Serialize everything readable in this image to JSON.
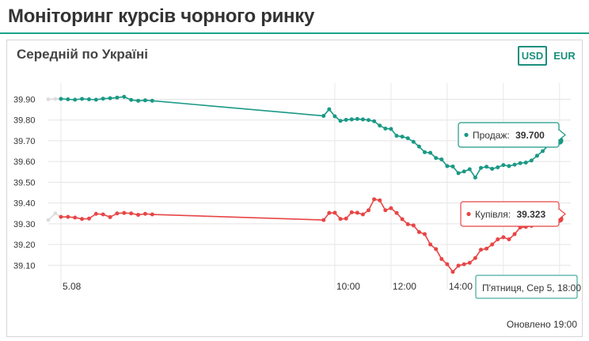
{
  "page": {
    "title": "Моніторинг курсів чорного ринку"
  },
  "card": {
    "title": "Середній по Україні",
    "currencies": [
      "USD",
      "EUR"
    ],
    "active_currency": "USD",
    "updated": "Оновлено 19:00"
  },
  "tooltips": {
    "sell_label": "Продаж:",
    "sell_value": "39.700",
    "buy_label": "Купівля:",
    "buy_value": "39.323",
    "date": "П'ятниця, Сер 5, 18:00"
  },
  "colors": {
    "sell": "#1a9985",
    "buy": "#e84545",
    "accent": "#1aa48a"
  },
  "chart_data": {
    "type": "line",
    "ylim": [
      39.04,
      39.94
    ],
    "y_ticks": [
      "39.10",
      "39.20",
      "39.30",
      "39.40",
      "39.50",
      "39.60",
      "39.70",
      "39.80",
      "39.90"
    ],
    "y_tick_values": [
      39.1,
      39.2,
      39.3,
      39.4,
      39.5,
      39.6,
      39.7,
      39.8,
      39.9
    ],
    "x_unit": "hours since midnight 5.08",
    "xlim": [
      -0.2,
      18.4
    ],
    "x_ticks": [
      {
        "label": "5.08",
        "x": 0.25
      },
      {
        "label": "10:00",
        "x": 10
      },
      {
        "label": "12:00",
        "x": 12
      },
      {
        "label": "14:00",
        "x": 14
      }
    ],
    "x_grid": [
      0.25,
      10,
      12,
      14,
      16,
      18
    ],
    "series": [
      {
        "name": "Продаж",
        "key": "sell",
        "ghost": [
          [
            -0.2,
            39.9
          ],
          [
            0.05,
            39.902
          ]
        ],
        "points": [
          [
            0.25,
            39.902
          ],
          [
            0.5,
            39.9
          ],
          [
            0.75,
            39.898
          ],
          [
            1.0,
            39.902
          ],
          [
            1.25,
            39.9
          ],
          [
            1.5,
            39.898
          ],
          [
            1.75,
            39.903
          ],
          [
            2.0,
            39.905
          ],
          [
            2.25,
            39.908
          ],
          [
            2.5,
            39.912
          ],
          [
            2.75,
            39.897
          ],
          [
            3.0,
            39.893
          ],
          [
            3.25,
            39.895
          ],
          [
            3.5,
            39.893
          ],
          [
            9.6,
            39.82
          ],
          [
            9.8,
            39.852
          ],
          [
            10.0,
            39.818
          ],
          [
            10.2,
            39.796
          ],
          [
            10.4,
            39.801
          ],
          [
            10.6,
            39.803
          ],
          [
            10.8,
            39.805
          ],
          [
            11.0,
            39.803
          ],
          [
            11.2,
            39.8
          ],
          [
            11.4,
            39.794
          ],
          [
            11.6,
            39.773
          ],
          [
            11.8,
            39.759
          ],
          [
            12.0,
            39.757
          ],
          [
            12.2,
            39.724
          ],
          [
            12.4,
            39.72
          ],
          [
            12.6,
            39.712
          ],
          [
            12.8,
            39.695
          ],
          [
            13.0,
            39.672
          ],
          [
            13.2,
            39.645
          ],
          [
            13.4,
            39.642
          ],
          [
            13.6,
            39.617
          ],
          [
            13.8,
            39.61
          ],
          [
            14.0,
            39.578
          ],
          [
            14.2,
            39.576
          ],
          [
            14.4,
            39.544
          ],
          [
            14.6,
            39.552
          ],
          [
            14.8,
            39.563
          ],
          [
            15.0,
            39.523
          ],
          [
            15.2,
            39.569
          ],
          [
            15.4,
            39.575
          ],
          [
            15.6,
            39.565
          ],
          [
            15.8,
            39.572
          ],
          [
            16.0,
            39.583
          ],
          [
            16.2,
            39.578
          ],
          [
            16.4,
            39.585
          ],
          [
            16.6,
            39.592
          ],
          [
            16.8,
            39.595
          ],
          [
            17.0,
            39.605
          ],
          [
            17.2,
            39.628
          ],
          [
            17.4,
            39.65
          ],
          [
            17.6,
            39.678
          ],
          [
            17.8,
            39.695
          ],
          [
            18.0,
            39.7
          ]
        ]
      },
      {
        "name": "Купівля",
        "key": "buy",
        "ghost": [
          [
            -0.2,
            39.318
          ],
          [
            0.05,
            39.35
          ]
        ],
        "points": [
          [
            0.25,
            39.333
          ],
          [
            0.5,
            39.333
          ],
          [
            0.75,
            39.33
          ],
          [
            1.0,
            39.323
          ],
          [
            1.25,
            39.325
          ],
          [
            1.5,
            39.348
          ],
          [
            1.75,
            39.345
          ],
          [
            2.0,
            39.332
          ],
          [
            2.25,
            39.35
          ],
          [
            2.5,
            39.352
          ],
          [
            2.75,
            39.35
          ],
          [
            3.0,
            39.343
          ],
          [
            3.25,
            39.348
          ],
          [
            3.5,
            39.345
          ],
          [
            9.6,
            39.318
          ],
          [
            9.8,
            39.352
          ],
          [
            10.0,
            39.353
          ],
          [
            10.2,
            39.323
          ],
          [
            10.4,
            39.325
          ],
          [
            10.6,
            39.355
          ],
          [
            10.8,
            39.353
          ],
          [
            11.0,
            39.345
          ],
          [
            11.2,
            39.365
          ],
          [
            11.4,
            39.418
          ],
          [
            11.6,
            39.413
          ],
          [
            11.8,
            39.365
          ],
          [
            12.0,
            39.375
          ],
          [
            12.2,
            39.352
          ],
          [
            12.4,
            39.322
          ],
          [
            12.6,
            39.298
          ],
          [
            12.8,
            39.292
          ],
          [
            13.0,
            39.26
          ],
          [
            13.2,
            39.25
          ],
          [
            13.4,
            39.2
          ],
          [
            13.6,
            39.178
          ],
          [
            13.8,
            39.13
          ],
          [
            14.0,
            39.105
          ],
          [
            14.2,
            39.068
          ],
          [
            14.4,
            39.098
          ],
          [
            14.6,
            39.105
          ],
          [
            14.8,
            39.112
          ],
          [
            15.0,
            39.135
          ],
          [
            15.2,
            39.175
          ],
          [
            15.4,
            39.18
          ],
          [
            15.6,
            39.2
          ],
          [
            15.8,
            39.225
          ],
          [
            16.0,
            39.235
          ],
          [
            16.2,
            39.225
          ],
          [
            16.4,
            39.25
          ],
          [
            16.6,
            39.282
          ],
          [
            16.8,
            39.285
          ],
          [
            17.0,
            39.29
          ],
          [
            17.2,
            39.295
          ],
          [
            17.4,
            39.305
          ],
          [
            17.6,
            39.312
          ],
          [
            17.8,
            39.318
          ],
          [
            18.0,
            39.323
          ]
        ]
      }
    ]
  }
}
